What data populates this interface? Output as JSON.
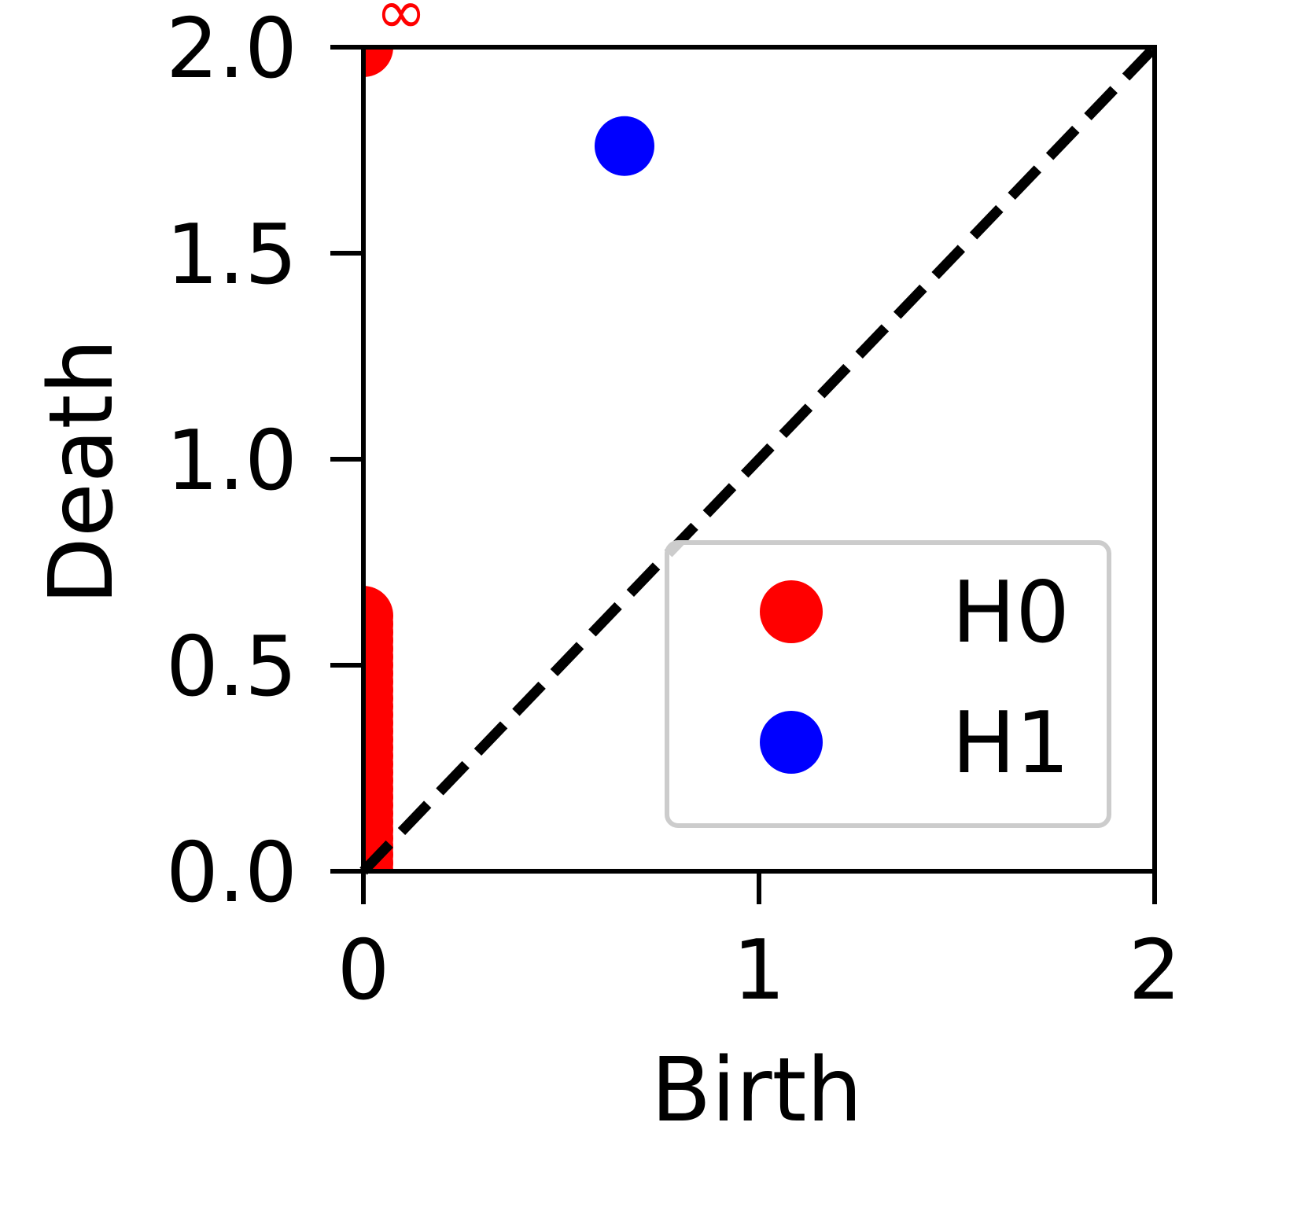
{
  "chart_data": {
    "type": "scatter",
    "xlabel": "Birth",
    "ylabel": "Death",
    "xlim": [
      0,
      2
    ],
    "ylim": [
      0,
      2
    ],
    "x_ticks": [
      "0",
      "1",
      "2"
    ],
    "y_ticks": [
      "0.0",
      "0.5",
      "1.0",
      "1.5",
      "2.0"
    ],
    "infinity_label": "∞",
    "grid": false,
    "legend_position": "lower-right",
    "diagonal": {
      "style": "dashed",
      "color": "#000000"
    },
    "series": [
      {
        "name": "H0",
        "color": "#ff0000",
        "points": [
          {
            "x": 0,
            "y": 0.0
          },
          {
            "x": 0,
            "y": 0.02
          },
          {
            "x": 0,
            "y": 0.04
          },
          {
            "x": 0,
            "y": 0.06
          },
          {
            "x": 0,
            "y": 0.08
          },
          {
            "x": 0,
            "y": 0.1
          },
          {
            "x": 0,
            "y": 0.12
          },
          {
            "x": 0,
            "y": 0.14
          },
          {
            "x": 0,
            "y": 0.16
          },
          {
            "x": 0,
            "y": 0.18
          },
          {
            "x": 0,
            "y": 0.2
          },
          {
            "x": 0,
            "y": 0.22
          },
          {
            "x": 0,
            "y": 0.24
          },
          {
            "x": 0,
            "y": 0.26
          },
          {
            "x": 0,
            "y": 0.28
          },
          {
            "x": 0,
            "y": 0.3
          },
          {
            "x": 0,
            "y": 0.32
          },
          {
            "x": 0,
            "y": 0.34
          },
          {
            "x": 0,
            "y": 0.36
          },
          {
            "x": 0,
            "y": 0.38
          },
          {
            "x": 0,
            "y": 0.4
          },
          {
            "x": 0,
            "y": 0.42
          },
          {
            "x": 0,
            "y": 0.44
          },
          {
            "x": 0,
            "y": 0.46
          },
          {
            "x": 0,
            "y": 0.48
          },
          {
            "x": 0,
            "y": 0.5
          },
          {
            "x": 0,
            "y": 0.52
          },
          {
            "x": 0,
            "y": 0.54
          },
          {
            "x": 0,
            "y": 0.56
          },
          {
            "x": 0,
            "y": 0.58
          },
          {
            "x": 0,
            "y": 0.6
          },
          {
            "x": 0,
            "y": 0.62
          },
          {
            "x": 0,
            "y": 2.0,
            "infinite": true
          }
        ]
      },
      {
        "name": "H1",
        "color": "#0000ff",
        "points": [
          {
            "x": 0.66,
            "y": 1.76
          }
        ]
      }
    ]
  }
}
